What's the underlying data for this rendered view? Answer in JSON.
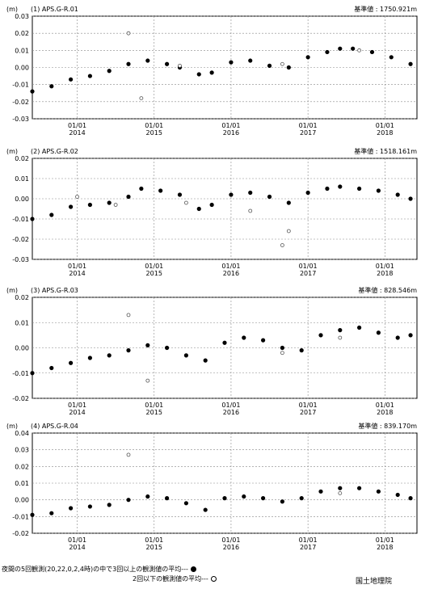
{
  "chart_data": [
    {
      "type": "scatter",
      "panel_label": "(1) APS.G-R.01",
      "unit": "(m)",
      "reference": "基準値 : 1750.921m",
      "ylim": [
        -0.03,
        0.03
      ],
      "yticks": [
        "0.03",
        "0.02",
        "0.01",
        "0.00",
        "-0.01",
        "-0.02",
        "-0.03"
      ],
      "xlim": [
        "2013-06",
        "2018-06"
      ],
      "xticks": [
        {
          "top": "01/01",
          "bottom": "2014"
        },
        {
          "top": "01/01",
          "bottom": "2015"
        },
        {
          "top": "01/01",
          "bottom": "2016"
        },
        {
          "top": "01/01",
          "bottom": "2017"
        },
        {
          "top": "01/01",
          "bottom": "2018"
        }
      ],
      "grid": true,
      "series": [
        {
          "name": "3回以上の観測値の平均",
          "marker": "filled",
          "x": [
            "2013-06",
            "2013-09",
            "2013-12",
            "2014-03",
            "2014-06",
            "2014-09",
            "2014-12",
            "2015-03",
            "2015-05",
            "2015-08",
            "2015-10",
            "2016-01",
            "2016-04",
            "2016-07",
            "2016-10",
            "2017-01",
            "2017-04",
            "2017-06",
            "2017-08",
            "2017-11",
            "2018-02",
            "2018-05"
          ],
          "y": [
            -0.014,
            -0.011,
            -0.007,
            -0.005,
            -0.002,
            0.002,
            0.004,
            0.002,
            0.0,
            -0.004,
            -0.003,
            0.003,
            0.004,
            0.001,
            0.0,
            0.006,
            0.009,
            0.011,
            0.011,
            0.009,
            0.006,
            0.002
          ]
        },
        {
          "name": "2回以下の観測値の平均",
          "marker": "open",
          "x": [
            "2014-09",
            "2014-11",
            "2015-05",
            "2016-09",
            "2017-09"
          ],
          "y": [
            0.02,
            -0.018,
            0.001,
            0.002,
            0.01
          ]
        }
      ]
    },
    {
      "type": "scatter",
      "panel_label": "(2) APS.G-R.02",
      "unit": "(m)",
      "reference": "基準値 : 1518.161m",
      "ylim": [
        -0.03,
        0.02
      ],
      "yticks": [
        "0.02",
        "0.01",
        "0.00",
        "-0.01",
        "-0.02",
        "-0.03"
      ],
      "xlim": [
        "2013-06",
        "2018-06"
      ],
      "xticks": [
        {
          "top": "01/01",
          "bottom": "2014"
        },
        {
          "top": "01/01",
          "bottom": "2015"
        },
        {
          "top": "01/01",
          "bottom": "2016"
        },
        {
          "top": "01/01",
          "bottom": "2017"
        },
        {
          "top": "01/01",
          "bottom": "2018"
        }
      ],
      "grid": true,
      "series": [
        {
          "name": "3回以上の観測値の平均",
          "marker": "filled",
          "x": [
            "2013-06",
            "2013-09",
            "2013-12",
            "2014-03",
            "2014-06",
            "2014-09",
            "2014-11",
            "2015-02",
            "2015-05",
            "2015-08",
            "2015-10",
            "2016-01",
            "2016-04",
            "2016-07",
            "2016-10",
            "2017-01",
            "2017-04",
            "2017-06",
            "2017-09",
            "2017-12",
            "2018-03",
            "2018-05"
          ],
          "y": [
            -0.01,
            -0.008,
            -0.004,
            -0.003,
            -0.002,
            0.001,
            0.005,
            0.004,
            0.002,
            -0.005,
            -0.003,
            0.002,
            0.003,
            0.001,
            -0.002,
            0.003,
            0.005,
            0.006,
            0.005,
            0.004,
            0.002,
            0.0
          ]
        },
        {
          "name": "2回以下の観測値の平均",
          "marker": "open",
          "x": [
            "2014-01",
            "2014-07",
            "2015-06",
            "2016-04",
            "2016-10",
            "2016-09"
          ],
          "y": [
            0.001,
            -0.003,
            -0.002,
            -0.006,
            -0.016,
            -0.023
          ]
        }
      ]
    },
    {
      "type": "scatter",
      "panel_label": "(3) APS.G-R.03",
      "unit": "(m)",
      "reference": "基準値 : 828.546m",
      "ylim": [
        -0.02,
        0.02
      ],
      "yticks": [
        "0.02",
        "0.01",
        "0.00",
        "-0.01",
        "-0.02"
      ],
      "xlim": [
        "2013-06",
        "2018-06"
      ],
      "xticks": [
        {
          "top": "01/01",
          "bottom": "2014"
        },
        {
          "top": "01/01",
          "bottom": "2015"
        },
        {
          "top": "01/01",
          "bottom": "2016"
        },
        {
          "top": "01/01",
          "bottom": "2017"
        },
        {
          "top": "01/01",
          "bottom": "2018"
        }
      ],
      "grid": true,
      "series": [
        {
          "name": "3回以上の観測値の平均",
          "marker": "filled",
          "x": [
            "2013-06",
            "2013-09",
            "2013-12",
            "2014-03",
            "2014-06",
            "2014-09",
            "2014-12",
            "2015-03",
            "2015-06",
            "2015-09",
            "2015-12",
            "2016-03",
            "2016-06",
            "2016-09",
            "2016-12",
            "2017-03",
            "2017-06",
            "2017-09",
            "2017-12",
            "2018-03",
            "2018-05"
          ],
          "y": [
            -0.01,
            -0.008,
            -0.006,
            -0.004,
            -0.003,
            -0.001,
            0.001,
            0.0,
            -0.003,
            -0.005,
            0.002,
            0.004,
            0.003,
            0.0,
            -0.001,
            0.005,
            0.007,
            0.008,
            0.006,
            0.004,
            0.005
          ]
        },
        {
          "name": "2回以下の観測値の平均",
          "marker": "open",
          "x": [
            "2014-09",
            "2014-12",
            "2016-09",
            "2017-06"
          ],
          "y": [
            0.013,
            -0.013,
            -0.002,
            0.004
          ]
        }
      ]
    },
    {
      "type": "scatter",
      "panel_label": "(4) APS.G-R.04",
      "unit": "(m)",
      "reference": "基準値 : 839.170m",
      "ylim": [
        -0.02,
        0.04
      ],
      "yticks": [
        "0.04",
        "0.03",
        "0.02",
        "0.01",
        "0.00",
        "-0.01",
        "-0.02"
      ],
      "xlim": [
        "2013-06",
        "2018-06"
      ],
      "xticks": [
        {
          "top": "01/01",
          "bottom": "2014"
        },
        {
          "top": "01/01",
          "bottom": "2015"
        },
        {
          "top": "01/01",
          "bottom": "2016"
        },
        {
          "top": "01/01",
          "bottom": "2017"
        },
        {
          "top": "01/01",
          "bottom": "2018"
        }
      ],
      "grid": true,
      "series": [
        {
          "name": "3回以上の観測値の平均",
          "marker": "filled",
          "x": [
            "2013-06",
            "2013-09",
            "2013-12",
            "2014-03",
            "2014-06",
            "2014-09",
            "2014-12",
            "2015-03",
            "2015-06",
            "2015-09",
            "2015-12",
            "2016-03",
            "2016-06",
            "2016-09",
            "2016-12",
            "2017-03",
            "2017-06",
            "2017-09",
            "2017-12",
            "2018-03",
            "2018-05"
          ],
          "y": [
            -0.009,
            -0.008,
            -0.005,
            -0.004,
            -0.003,
            0.0,
            0.002,
            0.001,
            -0.002,
            -0.006,
            0.001,
            0.002,
            0.001,
            -0.001,
            0.001,
            0.005,
            0.007,
            0.007,
            0.005,
            0.003,
            0.001
          ]
        },
        {
          "name": "2回以下の観測値の平均",
          "marker": "open",
          "x": [
            "2014-09",
            "2017-06"
          ],
          "y": [
            0.027,
            0.004
          ]
        }
      ]
    }
  ],
  "legend": {
    "filled_label": "夜間の5回観測(20,22,0,2,4時)の中で3回以上の観測値の平均---",
    "open_label": "2回以下の観測値の平均---"
  },
  "organization": "国土地理院"
}
